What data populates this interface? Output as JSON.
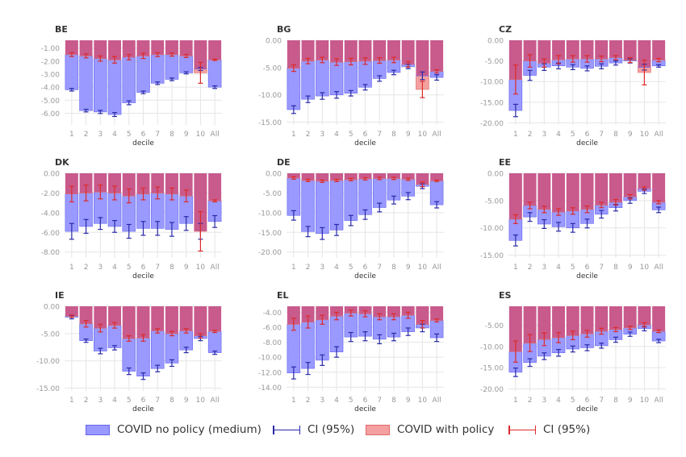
{
  "legend": {
    "no_policy_label": "COVID no policy (medium)",
    "no_policy_ci_label": "CI (95%)",
    "with_policy_label": "COVID with policy",
    "with_policy_ci_label": "CI (95%)"
  },
  "colors": {
    "no_policy_fill": "#9999ff",
    "no_policy_edge": "#6666ee",
    "no_policy_ci": "#2a2aa8",
    "with_policy_fill": "#f4a0a0",
    "with_policy_edge": "#e06a6a",
    "with_policy_ci": "#dd2a2a",
    "overlap_fill": "#c85a8c",
    "grid": "#e5e5e5",
    "tick": "#999999",
    "title": "#333333"
  },
  "chart_data": [
    {
      "type": "bar",
      "title": "BE",
      "xlabel": "decile",
      "categories": [
        "1",
        "2",
        "3",
        "4",
        "5",
        "6",
        "7",
        "8",
        "9",
        "10",
        "All"
      ],
      "yticks": [
        "-1.00",
        "-2.00",
        "-3.00",
        "-4.00",
        "-5.00",
        "-6.00"
      ],
      "ytick_values": [
        -1,
        -2,
        -3,
        -4,
        -5,
        -6
      ],
      "ylim": [
        -0.4,
        -6.9
      ],
      "series": [
        {
          "name": "COVID no policy (medium)",
          "values": [
            -4.2,
            -5.8,
            -5.9,
            -6.1,
            -5.2,
            -4.4,
            -3.7,
            -3.4,
            -2.9,
            -2.6,
            -4.0
          ],
          "ci": [
            0.1,
            0.1,
            0.12,
            0.15,
            0.15,
            0.1,
            0.1,
            0.1,
            0.08,
            0.12,
            0.1
          ]
        },
        {
          "name": "COVID with policy",
          "values": [
            -1.5,
            -1.6,
            -1.8,
            -1.9,
            -1.7,
            -1.6,
            -1.5,
            -1.5,
            -1.6,
            -2.9,
            -1.9
          ],
          "ci": [
            0.15,
            0.15,
            0.2,
            0.25,
            0.2,
            0.2,
            0.15,
            0.12,
            0.12,
            0.8,
            0.05
          ]
        }
      ]
    },
    {
      "type": "bar",
      "title": "BG",
      "xlabel": "decile",
      "categories": [
        "1",
        "2",
        "3",
        "4",
        "5",
        "6",
        "7",
        "8",
        "9",
        "10",
        "All"
      ],
      "yticks": [
        "0.00",
        "-5.00",
        "-10.00",
        "-15.00"
      ],
      "ytick_values": [
        0,
        -5,
        -10,
        -15
      ],
      "ylim": [
        0,
        -15.5
      ],
      "series": [
        {
          "name": "COVID no policy (medium)",
          "values": [
            -12.7,
            -10.8,
            -10.2,
            -10.0,
            -9.7,
            -8.6,
            -7.0,
            -5.9,
            -4.8,
            -6.5,
            -6.8
          ],
          "ci": [
            0.7,
            0.6,
            0.6,
            0.6,
            0.5,
            0.5,
            0.5,
            0.4,
            0.4,
            0.7,
            0.5
          ]
        },
        {
          "name": "COVID with policy",
          "values": [
            -5.1,
            -3.8,
            -3.6,
            -4.0,
            -3.9,
            -3.8,
            -3.7,
            -3.6,
            -4.4,
            -9.0,
            -5.7
          ],
          "ci": [
            0.6,
            0.5,
            0.5,
            0.6,
            0.6,
            0.6,
            0.5,
            0.5,
            0.5,
            1.5,
            0.3
          ]
        }
      ]
    },
    {
      "type": "bar",
      "title": "CZ",
      "xlabel": "decile",
      "categories": [
        "1",
        "2",
        "3",
        "4",
        "5",
        "6",
        "7",
        "8",
        "9",
        "10",
        "All"
      ],
      "yticks": [
        "0.00",
        "-5.00",
        "-10.00",
        "-15.00",
        "-20.00"
      ],
      "ytick_values": [
        0,
        -5,
        -10,
        -15,
        -20
      ],
      "ylim": [
        0,
        -20.5
      ],
      "series": [
        {
          "name": "COVID no policy (medium)",
          "values": [
            -17.0,
            -8.5,
            -6.5,
            -6.2,
            -6.5,
            -6.8,
            -6.3,
            -5.5,
            -5.0,
            -6.5,
            -6.2
          ],
          "ci": [
            1.5,
            1.2,
            0.8,
            0.7,
            0.6,
            0.6,
            0.6,
            0.5,
            0.5,
            0.7,
            0.3
          ]
        },
        {
          "name": "COVID with policy",
          "values": [
            -9.5,
            -5.0,
            -5.5,
            -4.7,
            -4.5,
            -4.5,
            -4.5,
            -4.2,
            -4.8,
            -7.8,
            -4.8
          ],
          "ci": [
            3.5,
            1.5,
            1.0,
            1.0,
            0.8,
            0.8,
            0.7,
            0.5,
            0.6,
            3.0,
            0.4
          ]
        }
      ]
    },
    {
      "type": "bar",
      "title": "DK",
      "xlabel": "decile",
      "categories": [
        "1",
        "2",
        "3",
        "4",
        "5",
        "6",
        "7",
        "8",
        "9",
        "10",
        "All"
      ],
      "yticks": [
        "0.00",
        "-2.00",
        "-4.00",
        "-6.00",
        "-8.00"
      ],
      "ytick_values": [
        0,
        -2,
        -4,
        -6,
        -8
      ],
      "ylim": [
        0,
        -8.6
      ],
      "series": [
        {
          "name": "COVID no policy (medium)",
          "values": [
            -5.9,
            -5.4,
            -5.1,
            -5.4,
            -5.9,
            -5.6,
            -5.6,
            -5.7,
            -5.1,
            -5.9,
            -4.9
          ],
          "ci": [
            0.8,
            0.7,
            0.6,
            0.6,
            0.7,
            0.7,
            0.7,
            0.7,
            0.7,
            0.8,
            0.6
          ]
        },
        {
          "name": "COVID with policy",
          "values": [
            -2.1,
            -2.0,
            -1.9,
            -2.0,
            -2.3,
            -2.1,
            -2.0,
            -2.1,
            -2.3,
            -5.9,
            -2.8
          ],
          "ci": [
            0.8,
            0.8,
            0.7,
            0.7,
            0.7,
            0.6,
            0.6,
            0.6,
            0.6,
            2.0,
            0.1
          ]
        }
      ]
    },
    {
      "type": "bar",
      "title": "DE",
      "xlabel": "decile",
      "categories": [
        "1",
        "2",
        "3",
        "4",
        "5",
        "6",
        "7",
        "8",
        "9",
        "10",
        "All"
      ],
      "yticks": [
        "0.00",
        "-5.00",
        "-10.00",
        "-15.00",
        "-20.00"
      ],
      "ytick_values": [
        0,
        -5,
        -10,
        -15,
        -20
      ],
      "ylim": [
        0,
        -21.5
      ],
      "series": [
        {
          "name": "COVID no policy (medium)",
          "values": [
            -10.7,
            -14.8,
            -15.3,
            -14.4,
            -12.0,
            -10.5,
            -8.7,
            -6.8,
            -5.8,
            -3.3,
            -8.0
          ],
          "ci": [
            1.2,
            1.3,
            1.5,
            1.4,
            1.3,
            1.2,
            1.1,
            1.0,
            0.9,
            0.6,
            0.8
          ]
        },
        {
          "name": "COVID with policy",
          "values": [
            -1.2,
            -1.8,
            -2.0,
            -1.8,
            -1.6,
            -1.4,
            -1.3,
            -1.3,
            -1.5,
            -2.8,
            -1.9
          ],
          "ci": [
            0.3,
            0.3,
            0.3,
            0.3,
            0.3,
            0.3,
            0.3,
            0.3,
            0.3,
            0.6,
            0.2
          ]
        }
      ]
    },
    {
      "type": "bar",
      "title": "EE",
      "xlabel": "decile",
      "categories": [
        "1",
        "2",
        "3",
        "4",
        "5",
        "6",
        "7",
        "8",
        "9",
        "10",
        "All"
      ],
      "yticks": [
        "0.00",
        "-5.00",
        "-10.00",
        "-15.00"
      ],
      "ytick_values": [
        0,
        -5,
        -10,
        -15
      ],
      "ylim": [
        0,
        -15.5
      ],
      "series": [
        {
          "name": "COVID no policy (medium)",
          "values": [
            -12.3,
            -8.0,
            -9.3,
            -9.8,
            -10.0,
            -9.2,
            -7.5,
            -6.3,
            -5.0,
            -3.3,
            -6.7
          ],
          "ci": [
            1.0,
            0.8,
            0.8,
            0.8,
            0.8,
            0.8,
            0.7,
            0.6,
            0.5,
            0.4,
            0.5
          ]
        },
        {
          "name": "COVID with policy",
          "values": [
            -8.4,
            -5.9,
            -6.6,
            -7.1,
            -6.9,
            -6.6,
            -5.8,
            -5.3,
            -4.3,
            -2.8,
            -5.3
          ],
          "ci": [
            0.8,
            0.6,
            0.6,
            0.6,
            0.6,
            0.6,
            0.5,
            0.5,
            0.4,
            0.3,
            0.3
          ]
        }
      ]
    },
    {
      "type": "bar",
      "title": "IE",
      "xlabel": "decile",
      "categories": [
        "1",
        "2",
        "3",
        "4",
        "5",
        "6",
        "7",
        "8",
        "9",
        "10",
        "All"
      ],
      "yticks": [
        "0.00",
        "-5.00",
        "-10.00",
        "-15.00"
      ],
      "ytick_values": [
        0,
        -5,
        -10,
        -15
      ],
      "ylim": [
        0,
        -15.5
      ],
      "series": [
        {
          "name": "COVID no policy (medium)",
          "values": [
            -2.0,
            -6.3,
            -8.2,
            -7.6,
            -11.9,
            -12.8,
            -11.4,
            -10.4,
            -8.0,
            -5.9,
            -8.5
          ],
          "ci": [
            0.3,
            0.3,
            0.5,
            0.4,
            0.6,
            0.6,
            0.6,
            0.6,
            0.5,
            0.4,
            0.3
          ]
        },
        {
          "name": "COVID with policy",
          "values": [
            -1.8,
            -3.2,
            -4.0,
            -3.5,
            -5.9,
            -5.8,
            -4.5,
            -5.0,
            -4.5,
            -5.4,
            -4.6
          ],
          "ci": [
            0.2,
            0.6,
            0.7,
            0.5,
            0.5,
            0.6,
            0.4,
            0.4,
            0.4,
            0.4,
            0.2
          ]
        }
      ]
    },
    {
      "type": "bar",
      "title": "EL",
      "xlabel": "decile",
      "categories": [
        "1",
        "2",
        "3",
        "4",
        "5",
        "6",
        "7",
        "8",
        "9",
        "10",
        "All"
      ],
      "yticks": [
        "-4.00",
        "-6.00",
        "-8.00",
        "-10.00",
        "-12.00",
        "-14.00"
      ],
      "ytick_values": [
        -4,
        -6,
        -8,
        -10,
        -12,
        -14
      ],
      "ylim": [
        -3.2,
        -14.5
      ],
      "series": [
        {
          "name": "COVID no policy (medium)",
          "values": [
            -12.1,
            -11.5,
            -10.4,
            -9.3,
            -7.3,
            -7.2,
            -7.6,
            -7.3,
            -6.6,
            -6.1,
            -7.4
          ],
          "ci": [
            0.8,
            0.8,
            0.7,
            0.7,
            0.6,
            0.6,
            0.6,
            0.5,
            0.5,
            0.5,
            0.5
          ]
        },
        {
          "name": "COVID with policy",
          "values": [
            -5.6,
            -5.3,
            -5.0,
            -4.5,
            -4.1,
            -4.2,
            -4.6,
            -4.6,
            -4.4,
            -5.6,
            -5.1
          ],
          "ci": [
            0.8,
            0.8,
            0.6,
            0.5,
            0.4,
            0.4,
            0.4,
            0.4,
            0.4,
            0.5,
            0.2
          ]
        }
      ]
    },
    {
      "type": "bar",
      "title": "ES",
      "xlabel": "decile",
      "categories": [
        "1",
        "2",
        "3",
        "4",
        "5",
        "6",
        "7",
        "8",
        "9",
        "10",
        "All"
      ],
      "yticks": [
        "-5.00",
        "-10.00",
        "-15.00",
        "-20.00"
      ],
      "ytick_values": [
        -5,
        -10,
        -15,
        -20
      ],
      "ylim": [
        -0.5,
        -20.5
      ],
      "series": [
        {
          "name": "COVID no policy (medium)",
          "values": [
            -16.1,
            -13.8,
            -12.3,
            -11.5,
            -10.6,
            -10.3,
            -9.8,
            -8.4,
            -7.1,
            -5.8,
            -8.7
          ],
          "ci": [
            1.0,
            0.9,
            0.8,
            0.8,
            0.7,
            0.7,
            0.6,
            0.6,
            0.5,
            0.5,
            0.4
          ]
        },
        {
          "name": "COVID with policy",
          "values": [
            -11.2,
            -9.2,
            -8.3,
            -7.9,
            -7.4,
            -7.0,
            -6.4,
            -6.0,
            -5.6,
            -4.9,
            -6.4
          ],
          "ci": [
            2.5,
            2.0,
            1.5,
            1.2,
            1.0,
            0.8,
            0.7,
            0.5,
            0.4,
            0.5,
            0.3
          ]
        }
      ]
    }
  ]
}
